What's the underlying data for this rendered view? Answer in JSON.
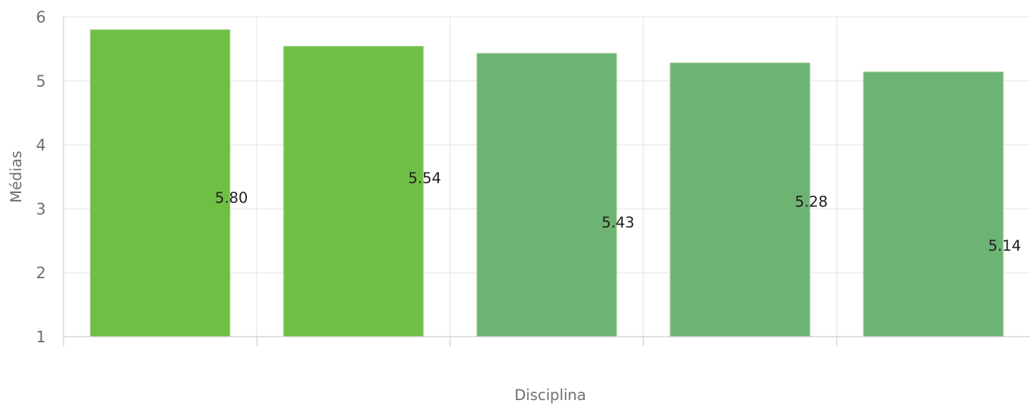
{
  "chart_data": {
    "type": "bar",
    "title": "",
    "xlabel": "Disciplina",
    "ylabel": "Médias",
    "categories": [
      "",
      "",
      "",
      "",
      ""
    ],
    "values": [
      5.8,
      5.54,
      5.43,
      5.28,
      5.14
    ],
    "value_labels": [
      "5.80",
      "5.54",
      "5.43",
      "5.28",
      "5.14"
    ],
    "yticks": [
      1,
      2,
      3,
      4,
      5,
      6
    ],
    "ylim": [
      1,
      6
    ],
    "grid": true,
    "legend": "none",
    "colors": [
      "#70bf45",
      "#70bf45",
      "#6db373",
      "#6db373",
      "#6db373"
    ]
  }
}
